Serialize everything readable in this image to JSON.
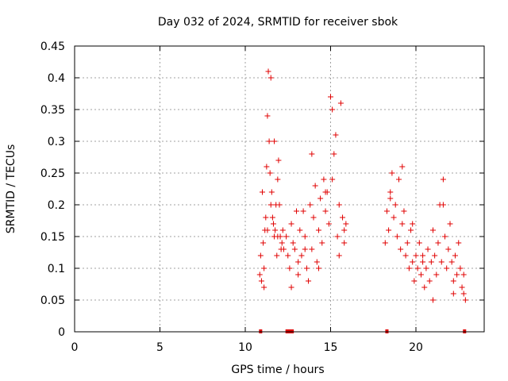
{
  "chart_data": {
    "type": "scatter",
    "title": "Day 032 of 2024, SRMTID for receiver sbok",
    "xlabel": "GPS time / hours",
    "ylabel": "SRMTID / TECUs",
    "xlim": [
      0,
      24
    ],
    "ylim": [
      0,
      0.45
    ],
    "x_ticks": [
      0,
      5,
      10,
      15,
      20
    ],
    "y_ticks": [
      0,
      0.05,
      0.1,
      0.15,
      0.2,
      0.25,
      0.3,
      0.35,
      0.4,
      0.45
    ],
    "x_tick_labels": [
      "0",
      "5",
      "10",
      "15",
      "20"
    ],
    "y_tick_labels": [
      "0",
      "0.05",
      "0.1",
      "0.15",
      "0.2",
      "0.25",
      "0.3",
      "0.35",
      "0.4",
      "0.45"
    ],
    "grid": true,
    "legend": "none",
    "marker": "+",
    "series_color": "#e00000",
    "series": [
      {
        "x": [
          10.85,
          10.9,
          10.95,
          11.0,
          11.05,
          11.1,
          11.15,
          11.2,
          11.25,
          11.3,
          11.35,
          11.4,
          11.45,
          11.5,
          11.55,
          11.6,
          11.65,
          11.7,
          11.75,
          11.8,
          11.85,
          11.9,
          11.95,
          12.0,
          12.05,
          12.1,
          12.15,
          12.2,
          12.25,
          12.4,
          12.5,
          12.6,
          12.7,
          12.8,
          12.9,
          13.0,
          13.1,
          13.2,
          13.3,
          13.4,
          13.5,
          13.6,
          13.7,
          13.8,
          13.9,
          14.0,
          14.1,
          14.2,
          14.3,
          14.4,
          14.5,
          14.6,
          14.7,
          14.8,
          14.9,
          15.0,
          15.1,
          15.2,
          15.3,
          15.4,
          15.5,
          15.6,
          15.7,
          15.8,
          15.9,
          18.2,
          18.3,
          18.4,
          18.5,
          18.6,
          18.7,
          18.8,
          18.9,
          19.0,
          19.1,
          19.2,
          19.3,
          19.4,
          19.5,
          19.6,
          19.7,
          19.8,
          19.9,
          20.0,
          20.1,
          20.2,
          20.3,
          20.4,
          20.5,
          20.6,
          20.7,
          20.8,
          20.9,
          21.0,
          21.1,
          21.2,
          21.3,
          21.4,
          21.5,
          21.6,
          21.7,
          21.8,
          21.9,
          22.0,
          22.1,
          22.2,
          22.3,
          22.4,
          22.5,
          22.6,
          22.7,
          22.8,
          22.9,
          11.1,
          11.3,
          11.5,
          11.7,
          11.9,
          12.7,
          13.1,
          13.5,
          13.9,
          14.3,
          14.7,
          15.1,
          15.5,
          15.8,
          18.5,
          19.2,
          19.8,
          20.4,
          21.0,
          21.6,
          22.2,
          22.8
        ],
        "y": [
          0.09,
          0.12,
          0.08,
          0.22,
          0.14,
          0.1,
          0.16,
          0.18,
          0.26,
          0.34,
          0.41,
          0.3,
          0.25,
          0.2,
          0.22,
          0.18,
          0.17,
          0.15,
          0.16,
          0.2,
          0.12,
          0.24,
          0.27,
          0.2,
          0.15,
          0.13,
          0.14,
          0.16,
          0.13,
          0.15,
          0.12,
          0.1,
          0.17,
          0.14,
          0.13,
          0.19,
          0.11,
          0.16,
          0.12,
          0.19,
          0.15,
          0.1,
          0.08,
          0.2,
          0.13,
          0.18,
          0.23,
          0.11,
          0.16,
          0.21,
          0.14,
          0.24,
          0.19,
          0.22,
          0.17,
          0.37,
          0.24,
          0.28,
          0.31,
          0.15,
          0.2,
          0.36,
          0.18,
          0.16,
          0.17,
          0.14,
          0.19,
          0.16,
          0.22,
          0.25,
          0.18,
          0.2,
          0.15,
          0.24,
          0.13,
          0.17,
          0.19,
          0.12,
          0.14,
          0.1,
          0.16,
          0.11,
          0.08,
          0.12,
          0.1,
          0.14,
          0.09,
          0.12,
          0.07,
          0.1,
          0.13,
          0.08,
          0.11,
          0.16,
          0.12,
          0.09,
          0.14,
          0.2,
          0.11,
          0.24,
          0.15,
          0.1,
          0.13,
          0.17,
          0.11,
          0.08,
          0.12,
          0.09,
          0.14,
          0.1,
          0.07,
          0.06,
          0.05,
          0.07,
          0.16,
          0.4,
          0.3,
          0.15,
          0.07,
          0.09,
          0.13,
          0.28,
          0.1,
          0.22,
          0.35,
          0.12,
          0.14,
          0.21,
          0.26,
          0.17,
          0.11,
          0.05,
          0.2,
          0.06,
          0.09
        ]
      }
    ],
    "data_gap_markers_x": [
      10.9,
      12.45,
      12.55,
      12.65,
      12.75,
      18.3,
      22.85
    ]
  }
}
